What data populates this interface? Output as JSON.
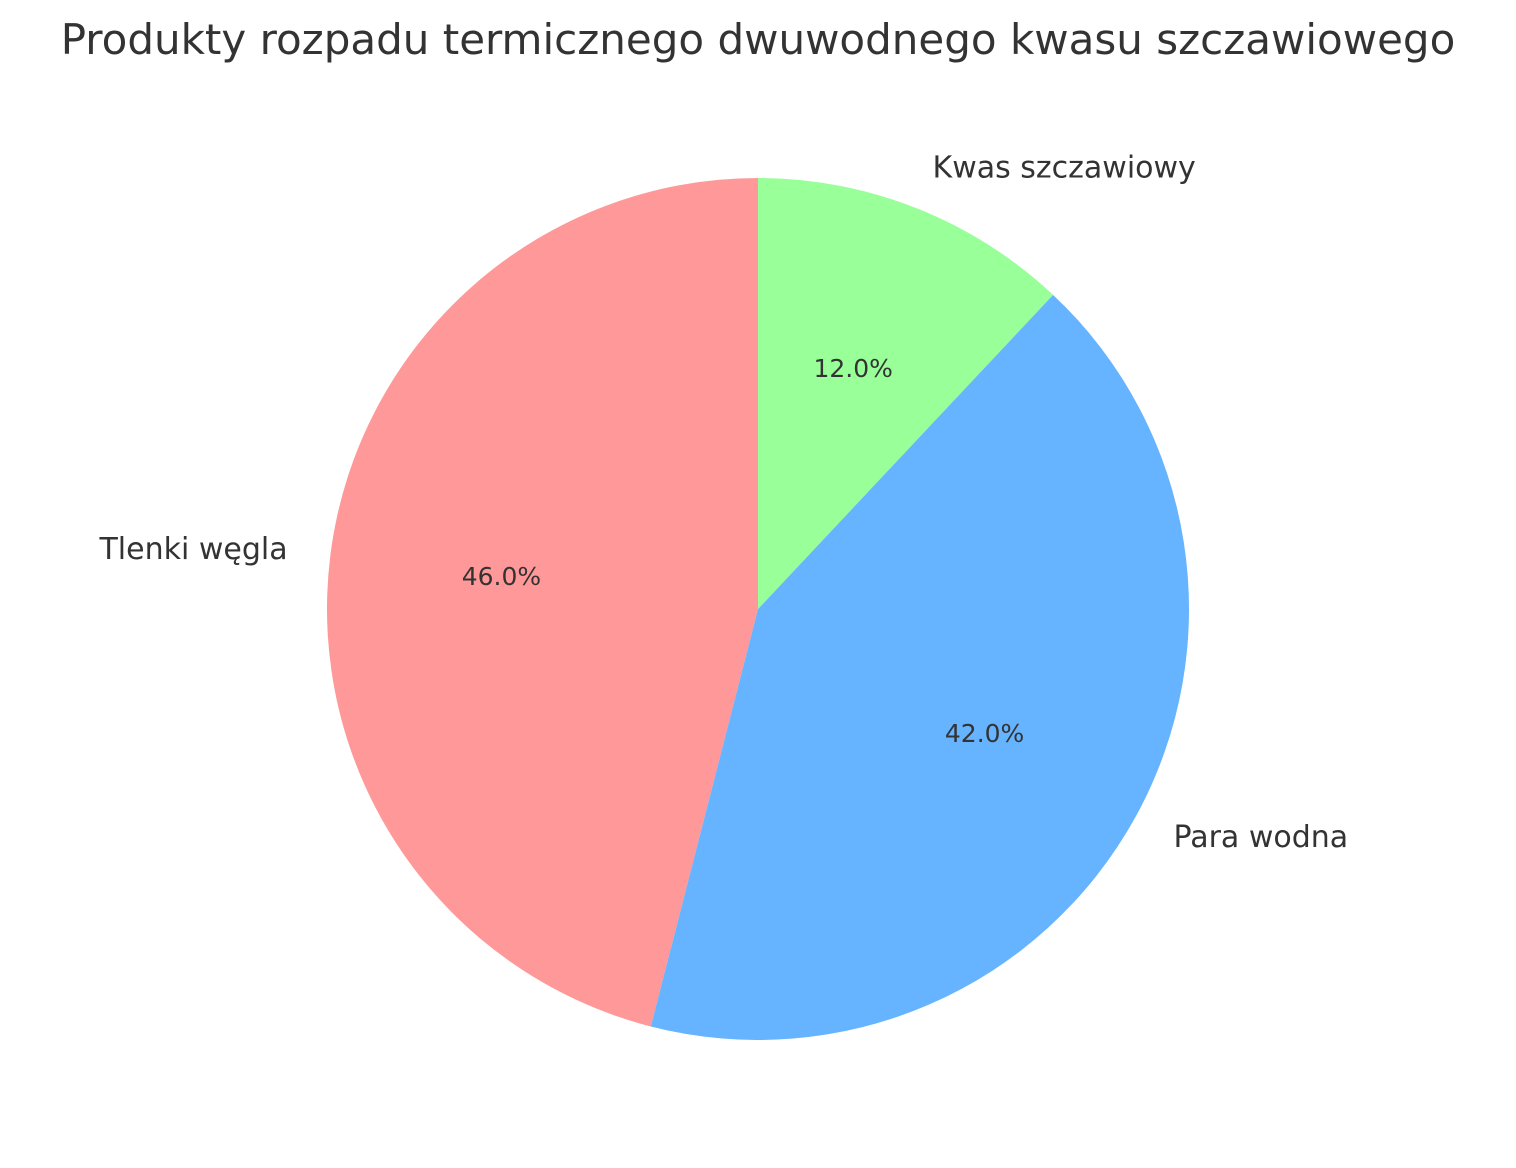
{
  "chart_data": {
    "type": "pie",
    "title": "Produkty rozpadu termicznego dwuwodnego kwasu szczawiowego",
    "slices": [
      {
        "label": "Tlenki węgla",
        "value": 46.0,
        "pct_label": "46.0%",
        "color": "#ff9999"
      },
      {
        "label": "Para wodna",
        "value": 42.0,
        "pct_label": "42.0%",
        "color": "#66b3ff"
      },
      {
        "label": "Kwas szczawiowy",
        "value": 12.0,
        "pct_label": "12.0%",
        "color": "#99ff99"
      }
    ],
    "start_angle_deg": 90,
    "direction": "counterclockwise",
    "legend": "none"
  }
}
